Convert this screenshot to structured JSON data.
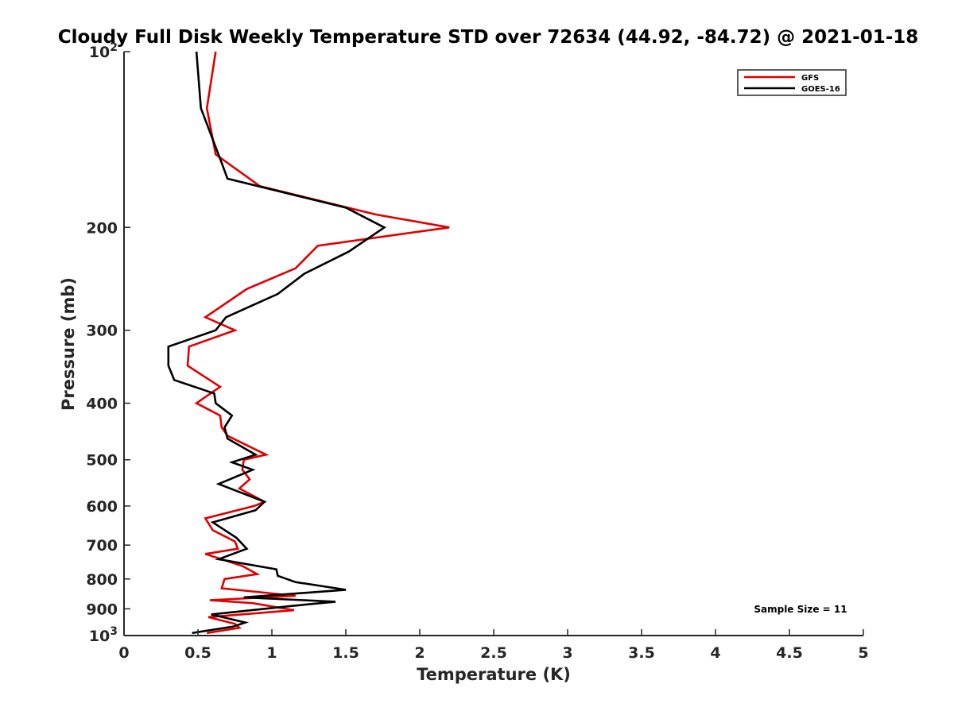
{
  "chart_data": {
    "type": "line",
    "title": "Cloudy Full Disk Weekly Temperature STD over 72634 (44.92, -84.72) @ 2021-01-18",
    "xlabel": "Temperature (K)",
    "ylabel": "Pressure (mb)",
    "xlim": [
      0,
      5
    ],
    "ylim": [
      100,
      1000
    ],
    "y_scale": "log",
    "y_reversed": true,
    "xticks": [
      {
        "v": 0,
        "label": "0"
      },
      {
        "v": 0.5,
        "label": "0.5"
      },
      {
        "v": 1,
        "label": "1"
      },
      {
        "v": 1.5,
        "label": "1.5"
      },
      {
        "v": 2,
        "label": "2"
      },
      {
        "v": 2.5,
        "label": "2.5"
      },
      {
        "v": 3,
        "label": "3"
      },
      {
        "v": 3.5,
        "label": "3.5"
      },
      {
        "v": 4,
        "label": "4"
      },
      {
        "v": 4.5,
        "label": "4.5"
      },
      {
        "v": 5,
        "label": "5"
      }
    ],
    "yticks": [
      {
        "v": 100,
        "label": "10",
        "sup": "2"
      },
      {
        "v": 200,
        "label": "200"
      },
      {
        "v": 300,
        "label": "300"
      },
      {
        "v": 400,
        "label": "400"
      },
      {
        "v": 500,
        "label": "500"
      },
      {
        "v": 600,
        "label": "600"
      },
      {
        "v": 700,
        "label": "700"
      },
      {
        "v": 800,
        "label": "800"
      },
      {
        "v": 900,
        "label": "900"
      },
      {
        "v": 1000,
        "label": "10",
        "sup": "3"
      }
    ],
    "grid": false,
    "legend": "top-right",
    "annotation": "Sample Size = 11",
    "series": [
      {
        "name": "GFS",
        "color": "#e00000",
        "points": [
          [
            0.62,
            100
          ],
          [
            0.56,
            125
          ],
          [
            0.62,
            150
          ],
          [
            0.92,
            170
          ],
          [
            1.7,
            190
          ],
          [
            2.2,
            200
          ],
          [
            1.31,
            215
          ],
          [
            1.16,
            235
          ],
          [
            0.83,
            255
          ],
          [
            0.55,
            285
          ],
          [
            0.75,
            300
          ],
          [
            0.44,
            320
          ],
          [
            0.43,
            345
          ],
          [
            0.65,
            375
          ],
          [
            0.49,
            400
          ],
          [
            0.65,
            420
          ],
          [
            0.66,
            440
          ],
          [
            0.7,
            455
          ],
          [
            0.96,
            490
          ],
          [
            0.81,
            500
          ],
          [
            0.8,
            520
          ],
          [
            0.85,
            540
          ],
          [
            0.78,
            560
          ],
          [
            0.95,
            590
          ],
          [
            0.88,
            600
          ],
          [
            0.55,
            630
          ],
          [
            0.6,
            660
          ],
          [
            0.75,
            690
          ],
          [
            0.77,
            710
          ],
          [
            0.55,
            725
          ],
          [
            0.8,
            760
          ],
          [
            0.9,
            785
          ],
          [
            0.68,
            800
          ],
          [
            0.66,
            830
          ],
          [
            1.16,
            855
          ],
          [
            0.58,
            870
          ],
          [
            0.87,
            880
          ],
          [
            1.15,
            905
          ],
          [
            0.57,
            930
          ],
          [
            0.75,
            955
          ],
          [
            0.78,
            970
          ],
          [
            0.56,
            990
          ]
        ]
      },
      {
        "name": "GOES-16",
        "color": "#000000",
        "points": [
          [
            0.49,
            100
          ],
          [
            0.52,
            125
          ],
          [
            0.66,
            155
          ],
          [
            0.7,
            165
          ],
          [
            1.5,
            185
          ],
          [
            1.76,
            200
          ],
          [
            1.52,
            220
          ],
          [
            1.22,
            240
          ],
          [
            1.04,
            260
          ],
          [
            0.69,
            285
          ],
          [
            0.62,
            300
          ],
          [
            0.3,
            320
          ],
          [
            0.3,
            345
          ],
          [
            0.34,
            365
          ],
          [
            0.61,
            385
          ],
          [
            0.62,
            400
          ],
          [
            0.73,
            420
          ],
          [
            0.68,
            440
          ],
          [
            0.7,
            460
          ],
          [
            0.89,
            490
          ],
          [
            0.73,
            505
          ],
          [
            0.87,
            520
          ],
          [
            0.64,
            550
          ],
          [
            0.95,
            590
          ],
          [
            0.89,
            610
          ],
          [
            0.6,
            640
          ],
          [
            0.76,
            680
          ],
          [
            0.83,
            710
          ],
          [
            0.64,
            740
          ],
          [
            1.03,
            770
          ],
          [
            1.04,
            790
          ],
          [
            1.16,
            810
          ],
          [
            1.5,
            835
          ],
          [
            0.81,
            860
          ],
          [
            1.43,
            875
          ],
          [
            1.13,
            890
          ],
          [
            0.59,
            920
          ],
          [
            0.82,
            950
          ],
          [
            0.74,
            965
          ],
          [
            0.46,
            990
          ]
        ]
      }
    ]
  }
}
